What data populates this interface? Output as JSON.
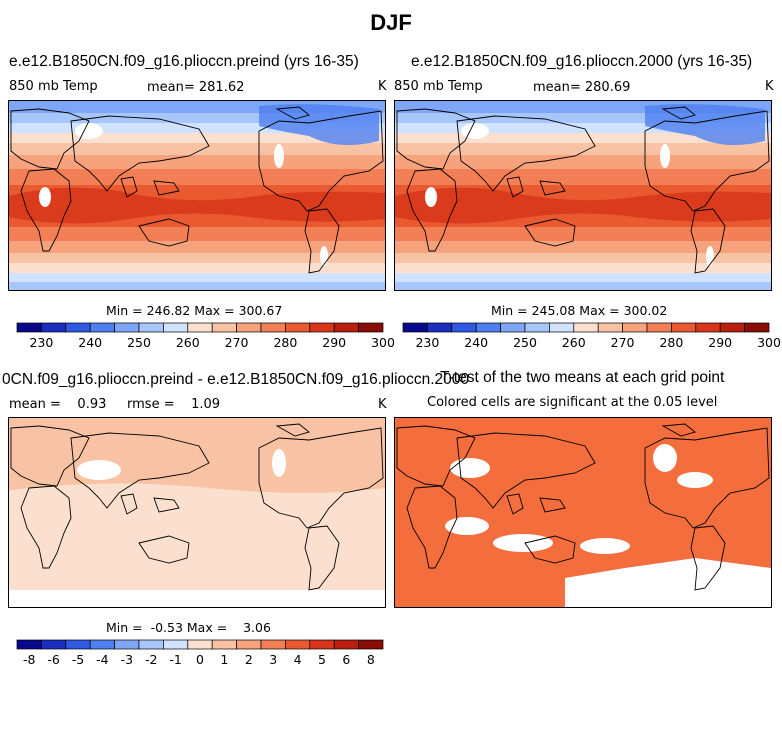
{
  "figure": {
    "title": "DJF"
  },
  "panels": [
    {
      "title": "e.e12.B1850CN.f09_g16.plioccn.preind (yrs 16-35)",
      "left_label": "850 mb Temp",
      "center_label": "mean= 281.62",
      "right_label": "K",
      "stats": "Min = 246.82 Max = 300.67",
      "kind": "field"
    },
    {
      "title": "e.e12.B1850CN.f09_g16.plioccn.2000 (yrs 16-35)",
      "left_label": "850 mb Temp",
      "center_label": "mean= 280.69",
      "right_label": "K",
      "stats": "Min = 245.08 Max = 300.02",
      "kind": "field"
    },
    {
      "title": "0CN.f09_g16.plioccn.preind - e.e12.B1850CN.f09_g16.plioccn.2000",
      "left_label": "mean =    0.93     rmse =    1.09",
      "center_label": "",
      "right_label": "K",
      "stats": "Min =  -0.53 Max =    3.06",
      "kind": "diff"
    },
    {
      "title": "T-test of the two means at each grid point",
      "left_label": "",
      "center_label": "Colored cells are significant at the 0.05 level",
      "right_label": "",
      "stats": "",
      "kind": "ttest"
    }
  ],
  "colorbars": {
    "field": {
      "labels": [
        "230",
        "240",
        "250",
        "260",
        "270",
        "280",
        "290",
        "300"
      ],
      "colors": [
        "#08088c",
        "#1a2fc0",
        "#2f59e0",
        "#4f7ff0",
        "#7fa6f6",
        "#a9c6fa",
        "#d0e2fd",
        "#fbe0cf",
        "#f8c3a5",
        "#f5a27d",
        "#f27f55",
        "#ea5a30",
        "#d8361a",
        "#b81f0f",
        "#8a0c06"
      ]
    },
    "diff": {
      "labels": [
        "-8",
        "-6",
        "-5",
        "-4",
        "-3",
        "-2",
        "-1",
        "0",
        "1",
        "2",
        "3",
        "4",
        "5",
        "6",
        "8"
      ],
      "colors": [
        "#08088c",
        "#1a2fc0",
        "#2f59e0",
        "#4f7ff0",
        "#7fa6f6",
        "#a9c6fa",
        "#d0e2fd",
        "#fbe0cf",
        "#f8c3a5",
        "#f5a27d",
        "#f27f55",
        "#ea5a30",
        "#d8361a",
        "#b81f0f",
        "#8a0c06"
      ]
    }
  },
  "chart_data": {
    "type": "heatmap",
    "title": "DJF",
    "variable": "850 mb Temp",
    "units": "K",
    "panels": [
      {
        "name": "e.e12.B1850CN.f09_g16.plioccn.preind (yrs 16-35)",
        "mean": 281.62,
        "min": 246.82,
        "max": 300.67
      },
      {
        "name": "e.e12.B1850CN.f09_g16.plioccn.2000 (yrs 16-35)",
        "mean": 280.69,
        "min": 245.08,
        "max": 300.02
      },
      {
        "name": "0CN.f09_g16.plioccn.preind - e.e12.B1850CN.f09_g16.plioccn.2000",
        "mean": 0.93,
        "rmse": 1.09,
        "min": -0.53,
        "max": 3.06
      },
      {
        "name": "T-test of the two means at each grid point",
        "significance_level": 0.05
      }
    ],
    "field_levels": [
      230,
      235,
      240,
      245,
      250,
      255,
      260,
      265,
      270,
      275,
      280,
      285,
      290,
      295,
      300
    ],
    "diff_levels": [
      -8,
      -6,
      -5,
      -4,
      -3,
      -2,
      -1,
      0,
      1,
      2,
      3,
      4,
      5,
      6,
      8
    ]
  }
}
